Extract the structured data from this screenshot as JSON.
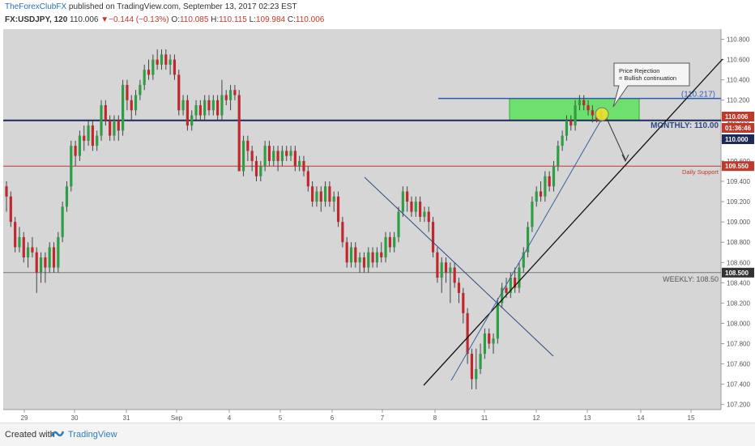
{
  "header": {
    "author": "TheForexClubFX",
    "published": "published on TradingView.com, September 13, 2017 02:23 EST",
    "symbol": "FX:USDJPY, 120",
    "last": "110.006",
    "change": "−0.144 (−0.13%)",
    "o_label": "O:",
    "o_val": "110.085",
    "h_label": "H:",
    "h_val": "110.115",
    "l_label": "L:",
    "l_val": "109.984",
    "c_label": "C:",
    "c_val": "110.006"
  },
  "footer": {
    "created": "Created with",
    "brand": "TradingView"
  },
  "chart_data": {
    "type": "candlestick",
    "y_axis": {
      "range": [
        107.15,
        110.9
      ],
      "ticks": [
        "110.800",
        "110.600",
        "110.400",
        "110.200",
        "110.000",
        "109.800",
        "109.600",
        "109.400",
        "109.200",
        "109.000",
        "108.800",
        "108.600",
        "108.400",
        "108.200",
        "108.000",
        "107.800",
        "107.600",
        "107.400",
        "107.200"
      ]
    },
    "x_axis": {
      "ticks": [
        "29",
        "30",
        "31",
        "Sep",
        "4",
        "5",
        "6",
        "7",
        "8",
        "11",
        "12",
        "13",
        "14",
        "15"
      ]
    },
    "price_tags": [
      {
        "label": "110.006",
        "bg": "#c0392b"
      },
      {
        "label": "01:36:46",
        "bg": "#c0392b"
      },
      {
        "label": "110.000",
        "bg": "#1e2a5a"
      },
      {
        "label": "109.550",
        "bg": "#c0392b"
      },
      {
        "label": "108.500",
        "bg": "#333333"
      }
    ],
    "levels": [
      {
        "name": "monthly",
        "price": 110.0,
        "label": "MONTHLY: 110.00",
        "color": "#1e2a5a"
      },
      {
        "name": "daily",
        "price": 109.55,
        "label": "Daily Support",
        "color": "#c0392b"
      },
      {
        "name": "weekly",
        "price": 108.5,
        "label": "WEEKLY: 108.50",
        "color": "#777777"
      },
      {
        "name": "upper",
        "price": 110.217,
        "label": "(110.217)",
        "color": "#2a5bb5"
      }
    ],
    "annotation": "Price Rejection\n= Bullish continuation",
    "ohlc": [
      [
        109.35,
        109.25,
        109.4,
        109.1
      ],
      [
        109.25,
        109.0,
        109.3,
        108.95
      ],
      [
        109.0,
        108.75,
        109.05,
        108.7
      ],
      [
        108.75,
        108.85,
        108.95,
        108.7
      ],
      [
        108.85,
        108.65,
        108.9,
        108.6
      ],
      [
        108.65,
        108.75,
        108.8,
        108.55
      ],
      [
        108.75,
        108.7,
        108.85,
        108.65
      ],
      [
        108.7,
        108.5,
        108.75,
        108.3
      ],
      [
        108.5,
        108.65,
        108.7,
        108.4
      ],
      [
        108.65,
        108.55,
        108.7,
        108.4
      ],
      [
        108.55,
        108.75,
        108.8,
        108.5
      ],
      [
        108.75,
        108.55,
        108.8,
        108.5
      ],
      [
        108.55,
        108.85,
        108.9,
        108.5
      ],
      [
        108.85,
        109.15,
        109.2,
        108.8
      ],
      [
        109.15,
        109.35,
        109.4,
        109.1
      ],
      [
        109.35,
        109.75,
        109.8,
        109.3
      ],
      [
        109.75,
        109.65,
        109.8,
        109.55
      ],
      [
        109.65,
        109.85,
        109.9,
        109.6
      ],
      [
        109.85,
        109.8,
        109.95,
        109.7
      ],
      [
        109.8,
        109.95,
        110.0,
        109.75
      ],
      [
        109.95,
        109.75,
        110.0,
        109.7
      ],
      [
        109.75,
        109.85,
        109.9,
        109.7
      ],
      [
        109.85,
        110.15,
        110.2,
        109.8
      ],
      [
        110.15,
        110.0,
        110.2,
        109.95
      ],
      [
        110.0,
        109.85,
        110.05,
        109.8
      ],
      [
        109.85,
        110.0,
        110.05,
        109.8
      ],
      [
        110.0,
        109.9,
        110.05,
        109.8
      ],
      [
        109.9,
        110.35,
        110.4,
        109.85
      ],
      [
        110.35,
        110.2,
        110.4,
        110.1
      ],
      [
        110.2,
        110.1,
        110.25,
        110.0
      ],
      [
        110.1,
        110.25,
        110.3,
        110.05
      ],
      [
        110.25,
        110.35,
        110.4,
        110.2
      ],
      [
        110.35,
        110.5,
        110.55,
        110.3
      ],
      [
        110.5,
        110.45,
        110.6,
        110.4
      ],
      [
        110.45,
        110.6,
        110.65,
        110.4
      ],
      [
        110.6,
        110.55,
        110.7,
        110.5
      ],
      [
        110.55,
        110.65,
        110.7,
        110.5
      ],
      [
        110.65,
        110.55,
        110.7,
        110.5
      ],
      [
        110.55,
        110.6,
        110.65,
        110.45
      ],
      [
        110.6,
        110.45,
        110.65,
        110.4
      ],
      [
        110.45,
        110.1,
        110.5,
        110.05
      ],
      [
        110.1,
        110.2,
        110.25,
        110.05
      ],
      [
        110.2,
        109.95,
        110.25,
        109.9
      ],
      [
        109.95,
        110.05,
        110.1,
        109.9
      ],
      [
        110.05,
        110.15,
        110.2,
        110.0
      ],
      [
        110.15,
        110.05,
        110.2,
        110.0
      ],
      [
        110.05,
        110.2,
        110.25,
        110.0
      ],
      [
        110.2,
        110.1,
        110.25,
        110.05
      ],
      [
        110.1,
        110.2,
        110.25,
        110.05
      ],
      [
        110.2,
        110.05,
        110.25,
        110.0
      ],
      [
        110.05,
        110.25,
        110.4,
        110.0
      ],
      [
        110.25,
        110.2,
        110.3,
        110.15
      ],
      [
        110.2,
        110.3,
        110.35,
        110.1
      ],
      [
        110.3,
        110.25,
        110.35,
        110.2
      ],
      [
        110.25,
        109.5,
        110.3,
        109.5
      ],
      [
        109.5,
        109.8,
        109.85,
        109.45
      ],
      [
        109.8,
        109.7,
        109.85,
        109.6
      ],
      [
        109.7,
        109.6,
        109.75,
        109.5
      ],
      [
        109.6,
        109.45,
        109.65,
        109.4
      ],
      [
        109.45,
        109.55,
        109.6,
        109.4
      ],
      [
        109.55,
        109.75,
        109.8,
        109.5
      ],
      [
        109.75,
        109.6,
        109.8,
        109.55
      ],
      [
        109.6,
        109.7,
        109.75,
        109.55
      ],
      [
        109.7,
        109.6,
        109.75,
        109.5
      ],
      [
        109.6,
        109.7,
        109.75,
        109.55
      ],
      [
        109.7,
        109.65,
        109.75,
        109.6
      ],
      [
        109.65,
        109.7,
        109.75,
        109.6
      ],
      [
        109.7,
        109.55,
        109.75,
        109.5
      ],
      [
        109.55,
        109.6,
        109.65,
        109.5
      ],
      [
        109.6,
        109.5,
        109.65,
        109.45
      ],
      [
        109.5,
        109.35,
        109.55,
        109.3
      ],
      [
        109.35,
        109.2,
        109.4,
        109.15
      ],
      [
        109.2,
        109.3,
        109.35,
        109.15
      ],
      [
        109.3,
        109.2,
        109.35,
        109.1
      ],
      [
        109.2,
        109.35,
        109.4,
        109.15
      ],
      [
        109.35,
        109.2,
        109.4,
        109.15
      ],
      [
        109.2,
        109.25,
        109.3,
        109.1
      ],
      [
        109.25,
        109.0,
        109.3,
        108.95
      ],
      [
        109.0,
        108.8,
        109.05,
        108.75
      ],
      [
        108.8,
        108.6,
        108.85,
        108.55
      ],
      [
        108.6,
        108.75,
        108.8,
        108.55
      ],
      [
        108.75,
        108.6,
        108.8,
        108.55
      ],
      [
        108.6,
        108.65,
        108.7,
        108.5
      ],
      [
        108.65,
        108.55,
        108.7,
        108.5
      ],
      [
        108.55,
        108.7,
        108.75,
        108.5
      ],
      [
        108.7,
        108.6,
        108.75,
        108.55
      ],
      [
        108.6,
        108.7,
        108.75,
        108.55
      ],
      [
        108.7,
        108.65,
        108.8,
        108.6
      ],
      [
        108.65,
        108.85,
        108.9,
        108.6
      ],
      [
        108.85,
        108.75,
        108.9,
        108.7
      ],
      [
        108.75,
        108.85,
        108.9,
        108.7
      ],
      [
        108.85,
        109.1,
        109.15,
        108.8
      ],
      [
        109.1,
        109.3,
        109.35,
        109.05
      ],
      [
        109.3,
        109.2,
        109.35,
        109.1
      ],
      [
        109.2,
        109.1,
        109.25,
        109.05
      ],
      [
        109.1,
        109.2,
        109.25,
        109.05
      ],
      [
        109.2,
        109.05,
        109.25,
        109.0
      ],
      [
        109.05,
        109.1,
        109.15,
        109.0
      ],
      [
        109.1,
        109.0,
        109.15,
        108.9
      ],
      [
        109.0,
        108.7,
        109.05,
        108.65
      ],
      [
        108.7,
        108.45,
        108.75,
        108.4
      ],
      [
        108.45,
        108.6,
        108.65,
        108.3
      ],
      [
        108.6,
        108.5,
        108.65,
        108.4
      ],
      [
        108.5,
        108.55,
        108.6,
        108.2
      ],
      [
        108.55,
        108.4,
        108.6,
        108.35
      ],
      [
        108.4,
        108.3,
        108.45,
        108.2
      ],
      [
        108.3,
        108.1,
        108.35,
        108.0
      ],
      [
        108.1,
        107.7,
        108.15,
        107.6
      ],
      [
        107.7,
        107.45,
        107.75,
        107.35
      ],
      [
        107.45,
        107.55,
        107.75,
        107.35
      ],
      [
        107.55,
        107.7,
        107.8,
        107.5
      ],
      [
        107.7,
        107.9,
        107.95,
        107.65
      ],
      [
        107.9,
        107.8,
        107.95,
        107.75
      ],
      [
        107.8,
        107.85,
        107.9,
        107.7
      ],
      [
        107.85,
        108.2,
        108.25,
        107.8
      ],
      [
        108.2,
        108.35,
        108.4,
        108.15
      ],
      [
        108.35,
        108.3,
        108.45,
        108.25
      ],
      [
        108.3,
        108.45,
        108.5,
        108.25
      ],
      [
        108.45,
        108.35,
        108.55,
        108.3
      ],
      [
        108.35,
        108.55,
        108.6,
        108.3
      ],
      [
        108.55,
        108.7,
        108.75,
        108.5
      ],
      [
        108.7,
        108.95,
        109.0,
        108.65
      ],
      [
        108.95,
        109.2,
        109.25,
        108.9
      ],
      [
        109.2,
        109.3,
        109.35,
        109.15
      ],
      [
        109.3,
        109.25,
        109.4,
        109.2
      ],
      [
        109.25,
        109.45,
        109.5,
        109.2
      ],
      [
        109.45,
        109.35,
        109.5,
        109.3
      ],
      [
        109.35,
        109.55,
        109.6,
        109.3
      ],
      [
        109.55,
        109.75,
        109.8,
        109.5
      ],
      [
        109.75,
        109.85,
        109.9,
        109.7
      ],
      [
        109.85,
        110.0,
        110.05,
        109.8
      ],
      [
        110.0,
        109.95,
        110.05,
        109.9
      ],
      [
        109.95,
        110.15,
        110.2,
        109.9
      ],
      [
        110.15,
        110.2,
        110.25,
        110.1
      ],
      [
        110.2,
        110.15,
        110.25,
        110.1
      ],
      [
        110.15,
        110.1,
        110.2,
        110.05
      ],
      [
        110.1,
        110.05,
        110.15,
        109.98
      ],
      [
        110.05,
        110.0,
        110.1,
        109.98
      ],
      [
        110.085,
        110.006,
        110.115,
        109.984
      ]
    ]
  }
}
